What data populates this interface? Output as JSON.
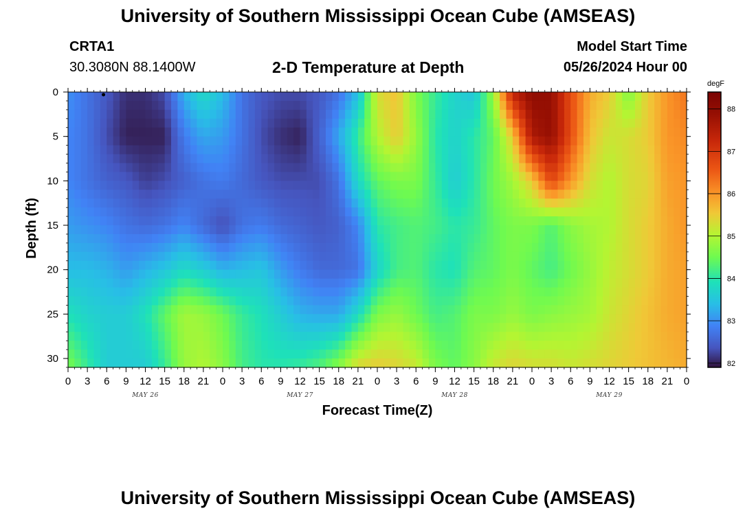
{
  "header": {
    "title": "University of Southern Mississippi Ocean Cube (AMSEAS)",
    "station_id": "CRTA1",
    "location": "30.3080N  88.1400W",
    "plot_title": "2-D Temperature at Depth",
    "model_start_label": "Model Start Time",
    "model_start_value": "05/26/2024 Hour 00"
  },
  "footer": {
    "title": "University of Southern Mississippi Ocean Cube (AMSEAS)"
  },
  "chart_data": {
    "type": "heatmap",
    "title": "2-D Temperature at Depth",
    "xlabel": "Forecast Time(Z)",
    "ylabel": "Depth (ft)",
    "colorbar_label": "degF",
    "x_hours": [
      0,
      96
    ],
    "x_tick_labels": [
      "0",
      "3",
      "6",
      "9",
      "12",
      "15",
      "18",
      "21",
      "0",
      "3",
      "6",
      "9",
      "12",
      "15",
      "18",
      "21",
      "0",
      "3",
      "6",
      "9",
      "12",
      "15",
      "18",
      "21",
      "0",
      "3",
      "6",
      "9",
      "12",
      "15",
      "18",
      "21",
      "0"
    ],
    "date_labels": [
      {
        "label": "MAY 26",
        "hour": 12
      },
      {
        "label": "MAY 27",
        "hour": 36
      },
      {
        "label": "MAY 28",
        "hour": 60
      },
      {
        "label": "MAY 29",
        "hour": 84
      }
    ],
    "ylim": [
      0,
      31
    ],
    "y_ticks": [
      0,
      5,
      10,
      15,
      20,
      25,
      30
    ],
    "y_tick_labels": [
      "0",
      "5",
      "10",
      "15",
      "20",
      "25",
      "30"
    ],
    "color_range": [
      81.9,
      88.4
    ],
    "colorbar_ticks": [
      82,
      83,
      84,
      85,
      86,
      87,
      88
    ],
    "colorbar_tick_labels": [
      "82",
      "83",
      "84",
      "85",
      "86",
      "87",
      "88"
    ],
    "grid_hours": [
      0,
      3,
      6,
      9,
      12,
      15,
      18,
      21,
      24,
      27,
      30,
      33,
      36,
      39,
      42,
      45,
      48,
      51,
      54,
      57,
      60,
      63,
      66,
      69,
      72,
      75,
      78,
      81,
      84,
      87,
      90,
      93,
      96
    ],
    "grid_depths": [
      0,
      5,
      10,
      15,
      20,
      25,
      31
    ],
    "temperature_degF": [
      [
        83.0,
        82.7,
        82.4,
        82.1,
        82.1,
        82.3,
        83.3,
        83.8,
        83.4,
        82.7,
        82.4,
        82.3,
        82.3,
        82.4,
        82.7,
        83.4,
        85.3,
        85.6,
        84.6,
        84.1,
        83.7,
        83.5,
        84.8,
        87.4,
        88.0,
        87.9,
        86.7,
        85.8,
        85.5,
        84.6,
        85.5,
        86.0,
        86.3
      ],
      [
        82.9,
        82.7,
        82.3,
        82.0,
        82.0,
        82.0,
        82.8,
        83.2,
        83.1,
        82.7,
        82.3,
        82.1,
        82.0,
        82.5,
        83.2,
        84.1,
        85.0,
        85.5,
        84.8,
        84.0,
        83.7,
        84.0,
        84.4,
        85.5,
        87.6,
        87.9,
        86.7,
        85.6,
        85.2,
        85.3,
        85.5,
        86.0,
        86.1
      ],
      [
        82.9,
        82.7,
        82.5,
        82.4,
        82.2,
        82.3,
        82.5,
        82.7,
        82.8,
        82.6,
        82.4,
        82.3,
        82.3,
        82.3,
        82.7,
        83.8,
        84.4,
        84.6,
        84.6,
        84.1,
        83.6,
        84.0,
        84.5,
        84.9,
        85.5,
        86.8,
        86.0,
        85.3,
        85.0,
        85.3,
        85.4,
        85.9,
        86.0
      ],
      [
        83.1,
        83.0,
        82.9,
        82.7,
        82.6,
        82.7,
        82.9,
        82.6,
        82.3,
        82.7,
        82.8,
        82.6,
        82.5,
        82.4,
        82.5,
        82.9,
        84.0,
        84.2,
        84.3,
        84.2,
        84.0,
        84.1,
        84.4,
        84.6,
        84.6,
        84.3,
        84.7,
        84.9,
        85.0,
        85.3,
        85.5,
        85.8,
        86.0
      ],
      [
        83.4,
        83.4,
        83.3,
        83.1,
        83.3,
        83.5,
        83.8,
        83.6,
        83.3,
        83.4,
        83.5,
        83.1,
        82.8,
        82.6,
        82.6,
        82.7,
        83.7,
        84.2,
        84.3,
        84.0,
        83.9,
        84.3,
        84.4,
        84.6,
        84.4,
        84.2,
        84.5,
        84.8,
        85.1,
        85.3,
        85.5,
        85.8,
        85.9
      ],
      [
        83.9,
        83.7,
        83.6,
        83.6,
        83.9,
        84.4,
        84.9,
        84.8,
        84.5,
        84.1,
        83.9,
        83.6,
        83.3,
        83.2,
        83.2,
        83.8,
        84.6,
        84.8,
        84.5,
        84.2,
        84.3,
        84.6,
        84.6,
        84.8,
        84.6,
        84.7,
        84.8,
        84.9,
        85.2,
        85.4,
        85.6,
        85.8,
        85.9
      ],
      [
        84.6,
        84.1,
        83.6,
        83.6,
        83.6,
        84.1,
        84.8,
        85.0,
        84.7,
        84.2,
        84.0,
        84.0,
        84.1,
        84.3,
        84.7,
        85.4,
        85.5,
        85.4,
        85.2,
        84.6,
        84.4,
        84.7,
        85.2,
        85.4,
        85.3,
        85.3,
        85.2,
        85.3,
        85.4,
        85.5,
        85.6,
        85.7,
        85.8
      ]
    ]
  }
}
